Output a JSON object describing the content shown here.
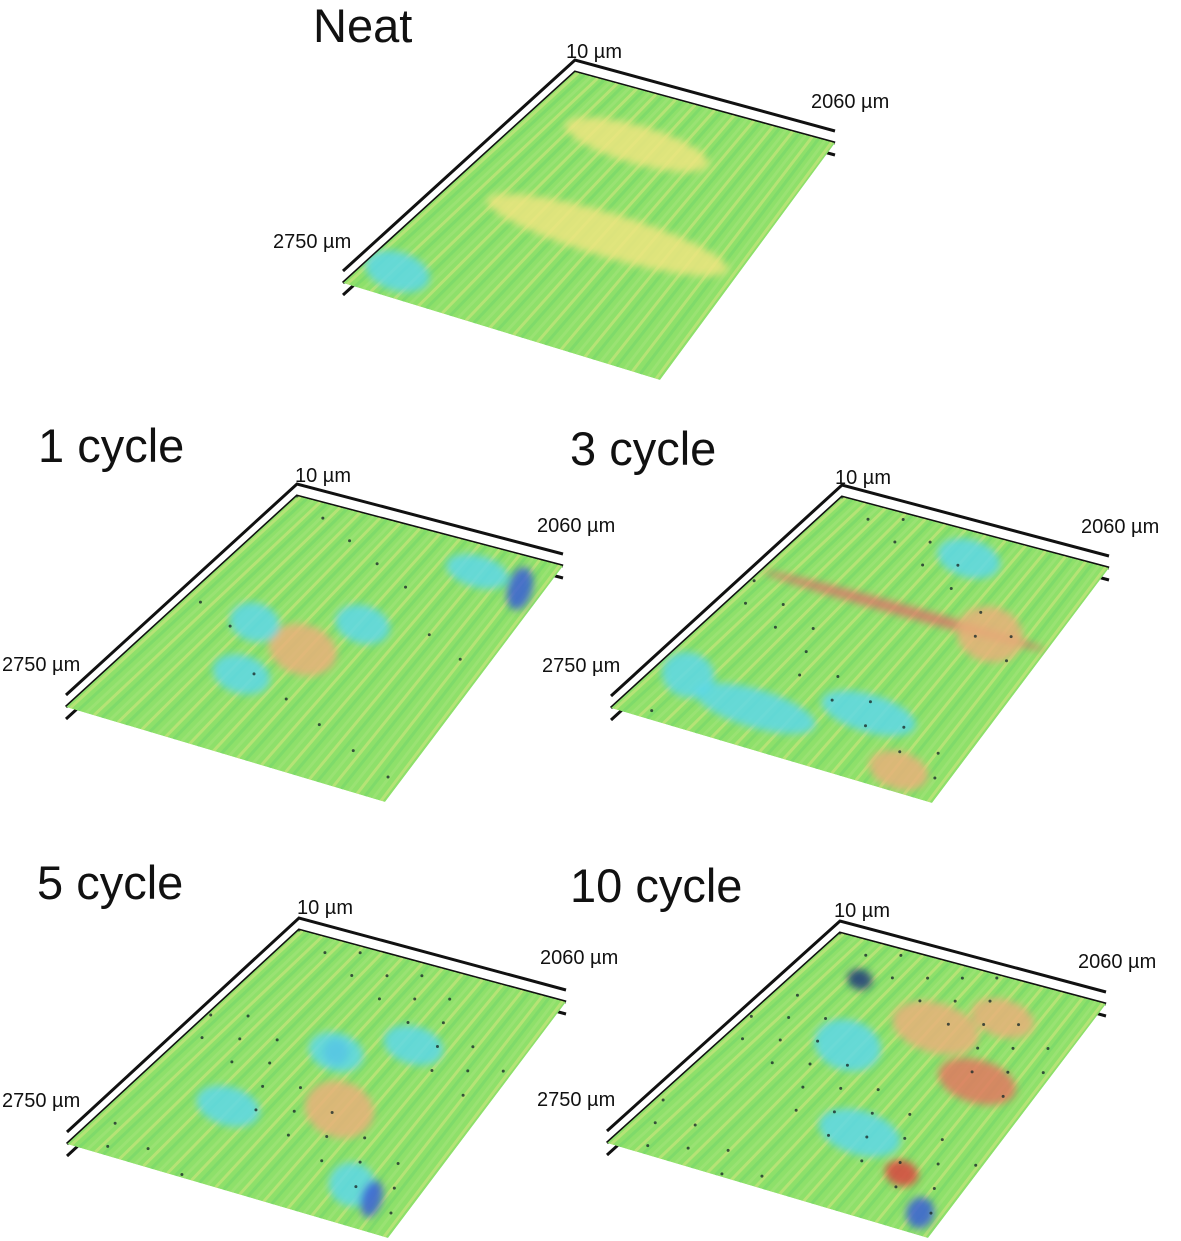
{
  "panels": [
    {
      "id": "neat",
      "title": "Neat",
      "z_label": "10 µm",
      "x_label": "2060 µm",
      "y_label": "2750 µm",
      "spots": [
        [
          "#5dd8e8",
          0.1,
          0.9,
          0.09,
          0.05
        ],
        [
          "#ece57f",
          0.55,
          0.55,
          0.4,
          0.06
        ],
        [
          "#ece57f",
          0.4,
          0.2,
          0.25,
          0.05
        ]
      ]
    },
    {
      "id": "cycle-1",
      "title": "1 cycle",
      "z_label": "10 µm",
      "x_label": "2060 µm",
      "y_label": "2750 µm",
      "spots": [
        [
          "#5dd8e8",
          0.55,
          0.4,
          0.08,
          0.05
        ],
        [
          "#5dd8e8",
          0.75,
          0.1,
          0.1,
          0.04
        ],
        [
          "#3b5fd6",
          0.92,
          0.12,
          0.03,
          0.06
        ],
        [
          "#e8b07a",
          0.45,
          0.55,
          0.1,
          0.07
        ],
        [
          "#5dd8e8",
          0.35,
          0.7,
          0.08,
          0.05
        ],
        [
          "#5dd8e8",
          0.25,
          0.5,
          0.07,
          0.05
        ]
      ]
    },
    {
      "id": "cycle-3",
      "title": "3 cycle",
      "z_label": "10 µm",
      "x_label": "2060 µm",
      "y_label": "2750 µm",
      "spots": [
        [
          "#d9776a",
          0.5,
          0.35,
          0.48,
          0.006
        ],
        [
          "#5dd8e8",
          0.35,
          0.85,
          0.18,
          0.05
        ],
        [
          "#5dd8e8",
          0.65,
          0.75,
          0.14,
          0.05
        ],
        [
          "#5dd8e8",
          0.55,
          0.1,
          0.1,
          0.05
        ],
        [
          "#e8b07a",
          0.8,
          0.35,
          0.1,
          0.08
        ],
        [
          "#e8b07a",
          0.85,
          0.92,
          0.08,
          0.05
        ],
        [
          "#5dd8e8",
          0.1,
          0.8,
          0.07,
          0.06
        ]
      ]
    },
    {
      "id": "cycle-5",
      "title": "5 cycle",
      "z_label": "10 µm",
      "x_label": "2060 µm",
      "y_label": "2750 µm",
      "spots": [
        [
          "#3b5fd6",
          0.45,
          0.4,
          0.03,
          0.03
        ],
        [
          "#5dd8e8",
          0.45,
          0.4,
          0.08,
          0.05
        ],
        [
          "#5dd8e8",
          0.3,
          0.7,
          0.09,
          0.05
        ],
        [
          "#5dd8e8",
          0.8,
          0.85,
          0.06,
          0.06
        ],
        [
          "#3b5fd6",
          0.88,
          0.88,
          0.02,
          0.05
        ],
        [
          "#e8b07a",
          0.6,
          0.6,
          0.1,
          0.08
        ],
        [
          "#5dd8e8",
          0.65,
          0.3,
          0.09,
          0.05
        ]
      ]
    },
    {
      "id": "cycle-10",
      "title": "10 cycle",
      "z_label": "10 µm",
      "x_label": "2060 µm",
      "y_label": "2750 µm",
      "spots": [
        [
          "#1c3b7a",
          0.2,
          0.15,
          0.03,
          0.02
        ],
        [
          "#5dd8e8",
          0.35,
          0.4,
          0.1,
          0.07
        ],
        [
          "#e8b07a",
          0.55,
          0.25,
          0.14,
          0.07
        ],
        [
          "#e07a60",
          0.8,
          0.4,
          0.12,
          0.06
        ],
        [
          "#d9463f",
          0.8,
          0.8,
          0.04,
          0.03
        ],
        [
          "#3b5fd6",
          0.93,
          0.92,
          0.03,
          0.04
        ],
        [
          "#5dd8e8",
          0.6,
          0.7,
          0.12,
          0.06
        ],
        [
          "#e8b07a",
          0.72,
          0.15,
          0.1,
          0.05
        ]
      ]
    }
  ]
}
